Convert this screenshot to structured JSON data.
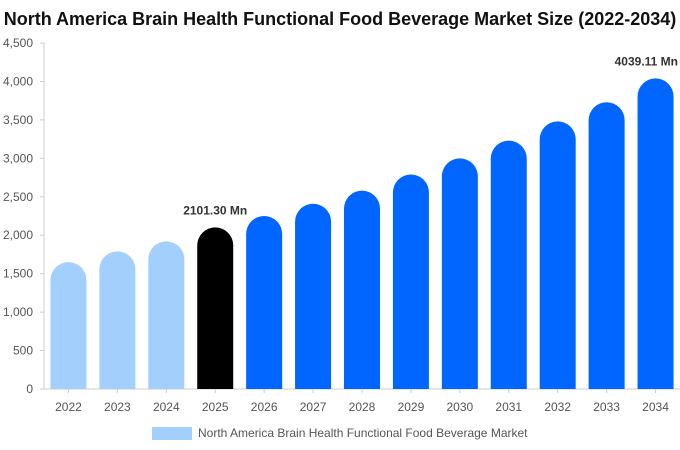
{
  "chart_data": {
    "type": "bar",
    "title": "North America Brain Health Functional Food Beverage Market Size (2022-2034)",
    "xlabel": "",
    "ylabel": "",
    "categories": [
      "2022",
      "2023",
      "2024",
      "2025",
      "2026",
      "2027",
      "2028",
      "2029",
      "2030",
      "2031",
      "2032",
      "2033",
      "2034"
    ],
    "series": [
      {
        "name": "North America Brain Health Functional Food Beverage Market",
        "values": [
          1650,
          1790,
          1920,
          2101.3,
          2250,
          2410,
          2580,
          2790,
          3000,
          3230,
          3480,
          3730,
          4039.11
        ]
      }
    ],
    "ylim": [
      0,
      4500
    ],
    "yticks": [
      0,
      500,
      1000,
      1500,
      2000,
      2500,
      3000,
      3500,
      4000,
      4500
    ],
    "ytick_labels": [
      "0",
      "500",
      "1,000",
      "1,500",
      "2,000",
      "2,500",
      "3,000",
      "3,500",
      "4,000",
      "4,500"
    ],
    "data_labels": [
      {
        "category": "2025",
        "text": "2101.30 Mn"
      },
      {
        "category": "2034",
        "text": "4039.11 Mn"
      }
    ],
    "bar_colors": {
      "historical": "#a3cffc",
      "current": "#000000",
      "forecast": "#0066ff"
    },
    "highlight_category": "2025",
    "legend_position": "bottom-center",
    "grid": false
  }
}
